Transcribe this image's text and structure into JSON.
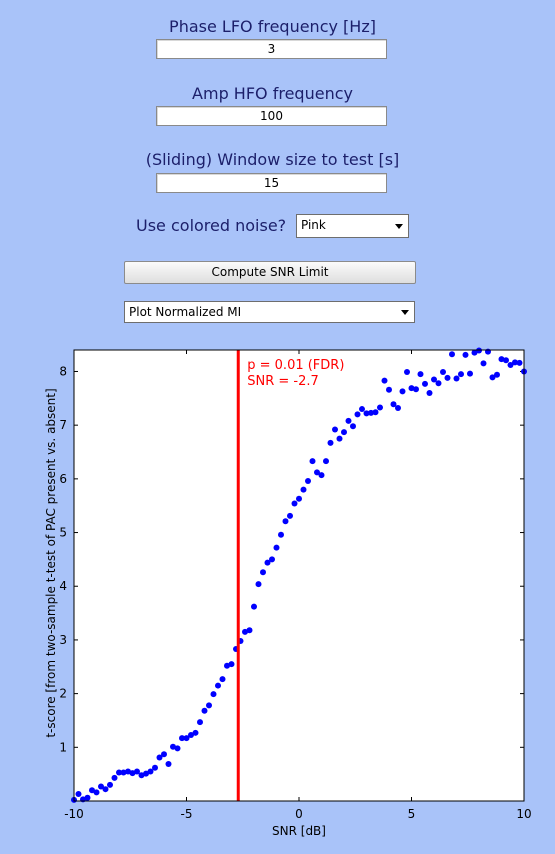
{
  "controls": {
    "phase_label": "Phase LFO frequency [Hz]",
    "phase_value": "3",
    "amp_label": "Amp HFO frequency",
    "amp_value": "100",
    "window_label": "(Sliding) Window size to test [s]",
    "window_value": "15",
    "noise_label": "Use colored noise?",
    "noise_selected": "Pink",
    "compute_button": "Compute SNR Limit",
    "plot_selected": "Plot Normalized MI"
  },
  "chart_data": {
    "type": "scatter",
    "xlabel": "SNR [dB]",
    "ylabel": "t-score [from two-sample t-test of PAC present vs. absent]",
    "xlim": [
      -10,
      10
    ],
    "ylim": [
      0,
      8.4
    ],
    "xticks": [
      -10,
      -5,
      0,
      5,
      10
    ],
    "yticks": [
      1,
      2,
      3,
      4,
      5,
      6,
      7,
      8
    ],
    "marker_color": "#0000ff",
    "line_color": "#ff0000",
    "threshold_x": -2.7,
    "annotations": [
      "p = 0.01 (FDR)",
      "SNR = -2.7"
    ],
    "series": [
      {
        "x": [
          -10.0,
          -9.8,
          -9.6,
          -9.4,
          -9.2,
          -9.0,
          -8.8,
          -8.6,
          -8.4,
          -8.2,
          -8.0,
          -7.8,
          -7.6,
          -7.4,
          -7.2,
          -7.0,
          -6.8,
          -6.6,
          -6.4,
          -6.2,
          -6.0,
          -5.8,
          -5.6,
          -5.4,
          -5.2,
          -5.0,
          -4.8,
          -4.6,
          -4.4,
          -4.2,
          -4.0,
          -3.8,
          -3.6,
          -3.4,
          -3.2,
          -3.0,
          -2.8,
          -2.6,
          -2.4,
          -2.2,
          -2.0,
          -1.8,
          -1.6,
          -1.4,
          -1.2,
          -1.0,
          -0.8,
          -0.6,
          -0.4,
          -0.2,
          0.0,
          0.2,
          0.4,
          0.6,
          0.8,
          1.0,
          1.2,
          1.4,
          1.6,
          1.8,
          2.0,
          2.2,
          2.4,
          2.6,
          2.8,
          3.0,
          3.2,
          3.4,
          3.6,
          3.8,
          4.0,
          4.2,
          4.4,
          4.6,
          4.8,
          5.0,
          5.2,
          5.4,
          5.6,
          5.8,
          6.0,
          6.2,
          6.4,
          6.6,
          6.8,
          7.0,
          7.2,
          7.4,
          7.6,
          7.8,
          8.0,
          8.2,
          8.4,
          8.6,
          8.8,
          9.0,
          9.2,
          9.4,
          9.6,
          9.8,
          10.0
        ],
        "values": [
          0.02,
          0.13,
          0.03,
          0.06,
          0.2,
          0.16,
          0.27,
          0.22,
          0.3,
          0.43,
          0.53,
          0.53,
          0.55,
          0.52,
          0.55,
          0.48,
          0.51,
          0.55,
          0.62,
          0.81,
          0.87,
          0.69,
          1.01,
          0.98,
          1.17,
          1.17,
          1.23,
          1.27,
          1.47,
          1.68,
          1.78,
          1.99,
          2.15,
          2.27,
          2.52,
          2.55,
          2.83,
          2.98,
          3.15,
          3.18,
          3.62,
          4.04,
          4.26,
          4.44,
          4.5,
          4.72,
          4.96,
          5.21,
          5.31,
          5.54,
          5.63,
          5.8,
          5.96,
          6.33,
          6.12,
          6.07,
          6.33,
          6.67,
          6.92,
          6.75,
          6.87,
          7.08,
          6.98,
          7.2,
          7.3,
          7.22,
          7.23,
          7.24,
          7.33,
          7.83,
          7.66,
          7.39,
          7.32,
          7.63,
          7.99,
          7.69,
          7.67,
          7.95,
          7.77,
          7.6,
          7.85,
          7.78,
          7.99,
          7.88,
          8.32,
          7.87,
          7.95,
          8.31,
          7.96,
          8.35,
          8.39,
          8.15,
          8.37,
          7.89,
          7.94,
          8.23,
          8.21,
          8.12,
          8.17,
          8.16,
          8.0
        ]
      }
    ]
  }
}
